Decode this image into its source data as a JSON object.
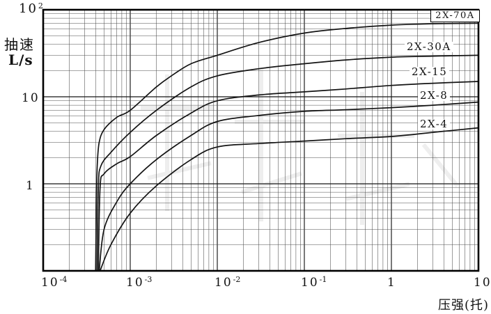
{
  "figure": {
    "y_axis_title_line1": "抽速",
    "y_axis_title_line2": "L/s",
    "x_axis_title": "压强(托)"
  },
  "y_ticks": [
    {
      "base": "10",
      "exp": "2"
    },
    {
      "base": "10",
      "exp": ""
    },
    {
      "base": "1",
      "exp": ""
    }
  ],
  "x_ticks": [
    {
      "base": "10",
      "exp": "-4"
    },
    {
      "base": "10",
      "exp": "-3"
    },
    {
      "base": "10",
      "exp": "-2"
    },
    {
      "base": "10",
      "exp": "-1"
    },
    {
      "base": "1",
      "exp": ""
    },
    {
      "base": "10",
      "exp": ""
    }
  ],
  "colors": {
    "background": "#ffffff",
    "curve": "#141414",
    "grid_minor": "#4d4d4d",
    "grid_major": "#151515",
    "border": "#000000"
  },
  "chart_data": {
    "type": "line",
    "title": "",
    "xlabel": "压强(托)",
    "ylabel": "抽速 L/s",
    "x_axis": {
      "scale": "log",
      "min": 0.0001,
      "max": 10,
      "tick_labels": [
        "10^-4",
        "10^-3",
        "10^-2",
        "10^-1",
        "1",
        "10"
      ]
    },
    "y_axis": {
      "scale": "log",
      "min": 0.1,
      "max": 100,
      "tick_labels": [
        "10^2",
        "10",
        "1"
      ]
    },
    "grid": "full log-log minor gridlines",
    "legend_position": "labels inline at right of curves",
    "series": [
      {
        "name": "2X-70A",
        "points": [
          [
            0.0004,
            0.1
          ],
          [
            0.00041,
            0.8
          ],
          [
            0.00042,
            1.8
          ],
          [
            0.00044,
            3.0
          ],
          [
            0.0005,
            4.2
          ],
          [
            0.0007,
            5.8
          ],
          [
            0.001,
            7.0
          ],
          [
            0.002,
            13
          ],
          [
            0.003,
            17.5
          ],
          [
            0.005,
            24
          ],
          [
            0.01,
            30
          ],
          [
            0.03,
            42
          ],
          [
            0.1,
            54
          ],
          [
            0.3,
            61
          ],
          [
            1,
            66.5
          ],
          [
            3,
            69
          ],
          [
            10,
            70
          ]
        ]
      },
      {
        "name": "2X-30A",
        "points": [
          [
            0.000415,
            0.1
          ],
          [
            0.00043,
            0.9
          ],
          [
            0.00046,
            1.6
          ],
          [
            0.0006,
            2.3
          ],
          [
            0.001,
            3.9
          ],
          [
            0.002,
            7.0
          ],
          [
            0.005,
            13
          ],
          [
            0.01,
            17.4
          ],
          [
            0.03,
            21
          ],
          [
            0.1,
            24
          ],
          [
            0.3,
            26.5
          ],
          [
            1,
            28.5
          ],
          [
            3,
            29.3
          ],
          [
            10,
            30
          ]
        ]
      },
      {
        "name": "2X-15",
        "points": [
          [
            0.00043,
            0.1
          ],
          [
            0.00045,
            0.9
          ],
          [
            0.0005,
            1.3
          ],
          [
            0.0007,
            1.7
          ],
          [
            0.001,
            2.05
          ],
          [
            0.002,
            3.6
          ],
          [
            0.005,
            6.5
          ],
          [
            0.01,
            9.0
          ],
          [
            0.03,
            10.5
          ],
          [
            0.1,
            11.4
          ],
          [
            0.3,
            12.3
          ],
          [
            1,
            13.5
          ],
          [
            3,
            14.3
          ],
          [
            10,
            15.0
          ]
        ]
      },
      {
        "name": "2X-8",
        "points": [
          [
            0.00044,
            0.1
          ],
          [
            0.0005,
            0.3
          ],
          [
            0.0007,
            0.62
          ],
          [
            0.001,
            1.0
          ],
          [
            0.002,
            1.9
          ],
          [
            0.005,
            3.6
          ],
          [
            0.01,
            5.2
          ],
          [
            0.03,
            6.1
          ],
          [
            0.1,
            6.8
          ],
          [
            0.3,
            7.1
          ],
          [
            1,
            7.5
          ],
          [
            3,
            8.0
          ],
          [
            10,
            8.7
          ]
        ]
      },
      {
        "name": "2X-4",
        "points": [
          [
            0.00045,
            0.1
          ],
          [
            0.0006,
            0.2
          ],
          [
            0.001,
            0.46
          ],
          [
            0.002,
            0.95
          ],
          [
            0.005,
            1.9
          ],
          [
            0.01,
            2.65
          ],
          [
            0.03,
            2.9
          ],
          [
            0.1,
            3.1
          ],
          [
            0.3,
            3.3
          ],
          [
            1,
            3.5
          ],
          [
            3,
            3.9
          ],
          [
            10,
            4.4
          ]
        ]
      }
    ]
  }
}
